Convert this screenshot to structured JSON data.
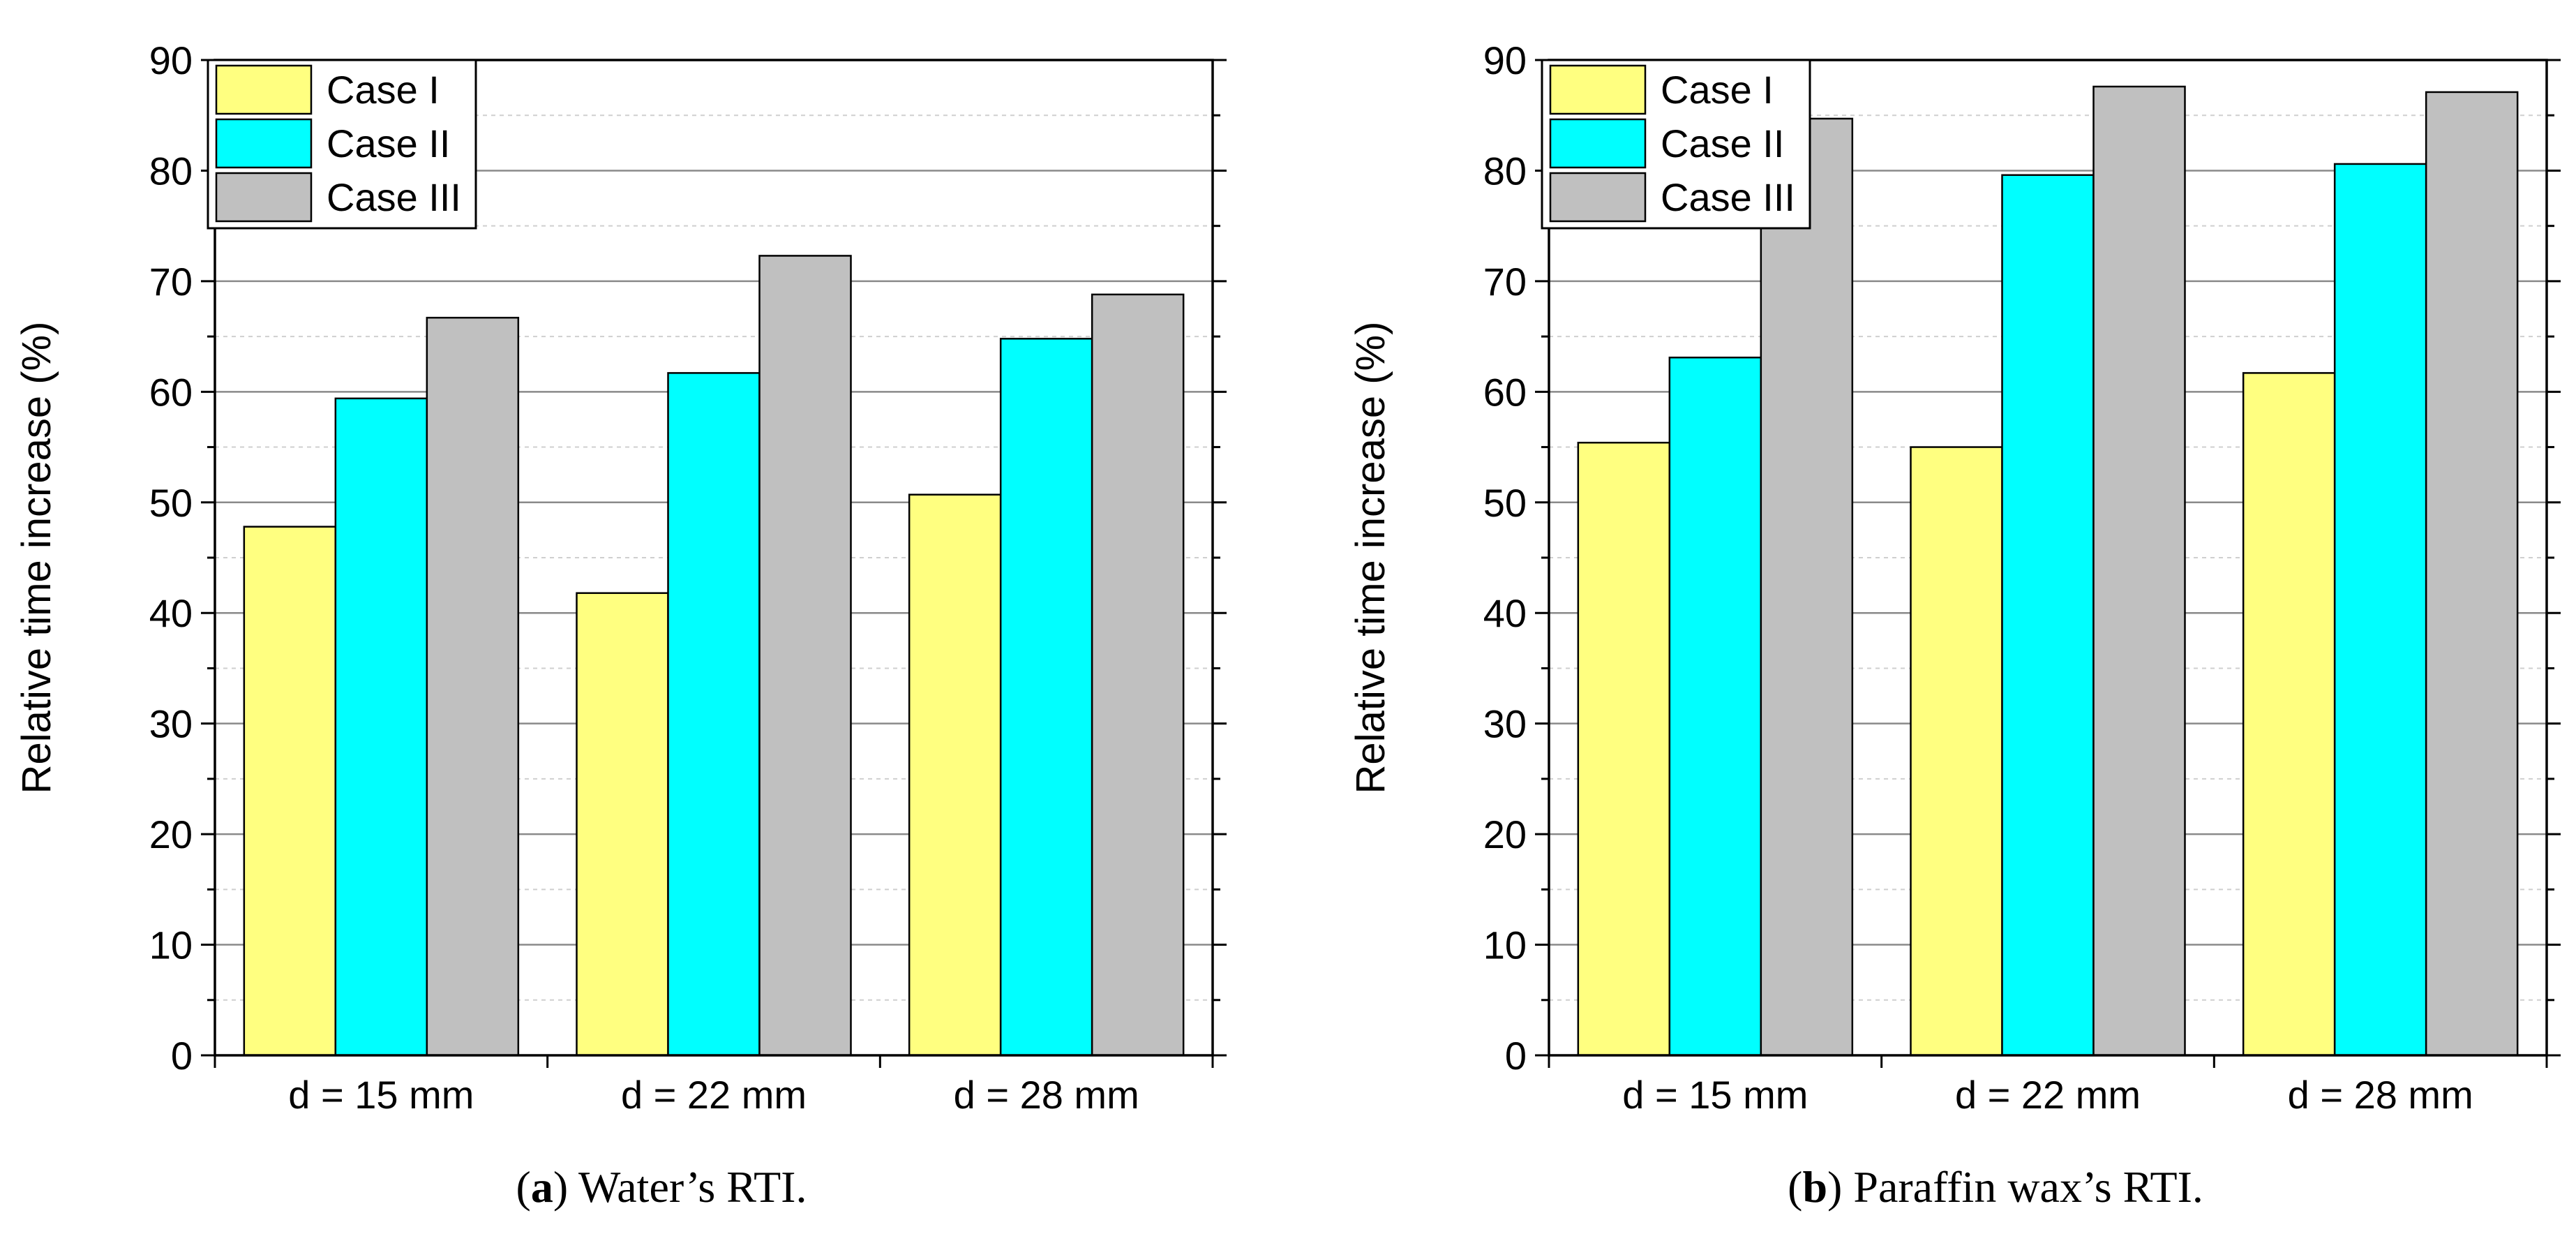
{
  "chart_data": [
    {
      "type": "bar",
      "panel_label": "a",
      "caption": "Water’s RTI.",
      "title": "",
      "xlabel": "",
      "ylabel": "Relative time increase (%)",
      "ylim": [
        0,
        90
      ],
      "yticks": [
        0,
        10,
        20,
        30,
        40,
        50,
        60,
        70,
        80,
        90
      ],
      "minor_grid_step": 5,
      "grid": true,
      "legend_position": "top-left",
      "categories": [
        "d = 15 mm",
        "d = 22 mm",
        "d = 28 mm"
      ],
      "series": [
        {
          "name": "Case I",
          "color": "#ffff80",
          "values": [
            47.8,
            41.8,
            50.7
          ]
        },
        {
          "name": "Case II",
          "color": "#00ffff",
          "values": [
            59.4,
            61.7,
            64.8
          ]
        },
        {
          "name": "Case III",
          "color": "#c0c0c0",
          "values": [
            66.7,
            72.3,
            68.8
          ]
        }
      ]
    },
    {
      "type": "bar",
      "panel_label": "b",
      "caption": "Paraffin wax’s RTI.",
      "title": "",
      "xlabel": "",
      "ylabel": "Relative time increase (%)",
      "ylim": [
        0,
        90
      ],
      "yticks": [
        0,
        10,
        20,
        30,
        40,
        50,
        60,
        70,
        80,
        90
      ],
      "minor_grid_step": 5,
      "grid": true,
      "legend_position": "top-left",
      "categories": [
        "d = 15 mm",
        "d = 22 mm",
        "d = 28 mm"
      ],
      "series": [
        {
          "name": "Case I",
          "color": "#ffff80",
          "values": [
            55.4,
            55.0,
            61.7
          ]
        },
        {
          "name": "Case II",
          "color": "#00ffff",
          "values": [
            63.1,
            79.6,
            80.6
          ]
        },
        {
          "name": "Case III",
          "color": "#c0c0c0",
          "values": [
            84.7,
            87.6,
            87.1
          ]
        }
      ]
    }
  ]
}
